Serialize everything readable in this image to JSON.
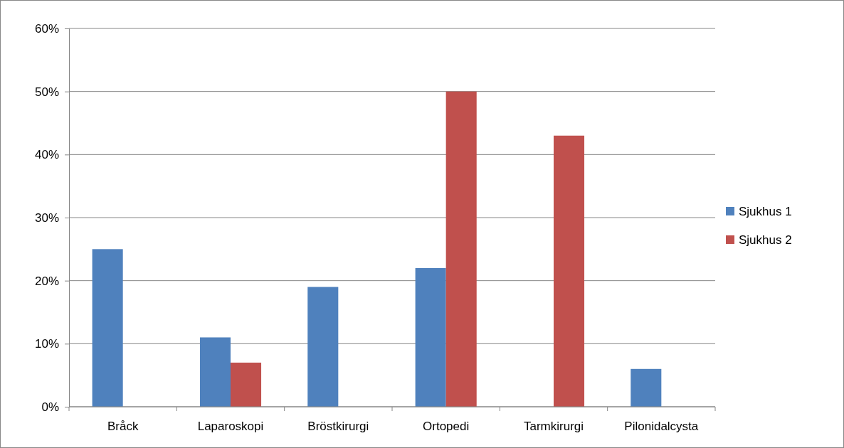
{
  "chart_data": {
    "type": "bar",
    "categories": [
      "Bråck",
      "Laparoskopi",
      "Bröstkirurgi",
      "Ortopedi",
      "Tarmkirurgi",
      "Pilonidalcysta"
    ],
    "series": [
      {
        "name": "Sjukhus 1",
        "color": "#4f81bd",
        "values": [
          25,
          11,
          19,
          22,
          null,
          6
        ]
      },
      {
        "name": "Sjukhus 2",
        "color": "#c0504d",
        "values": [
          null,
          7,
          null,
          50,
          43,
          null
        ]
      }
    ],
    "ylim": [
      0,
      60
    ],
    "yticks": [
      {
        "value": 0,
        "label": "0%"
      },
      {
        "value": 10,
        "label": "10%"
      },
      {
        "value": 20,
        "label": "20%"
      },
      {
        "value": 30,
        "label": "30%"
      },
      {
        "value": 40,
        "label": "40%"
      },
      {
        "value": 50,
        "label": "50%"
      },
      {
        "value": 60,
        "label": "60%"
      }
    ],
    "grid": "y",
    "legend": "right"
  }
}
